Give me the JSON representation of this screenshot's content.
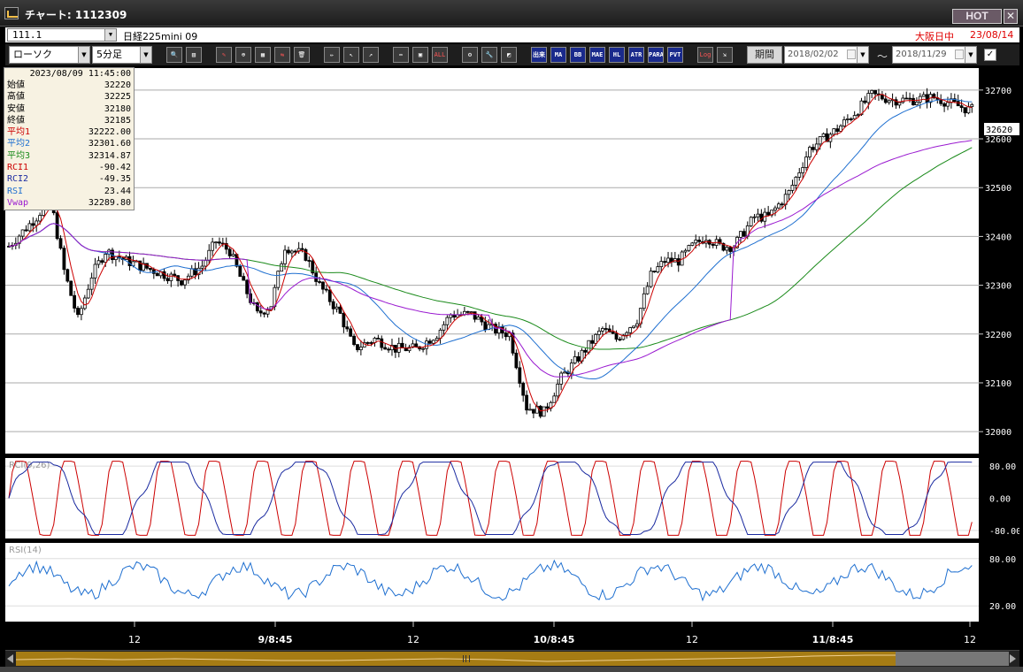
{
  "window": {
    "title": "チャート: 1112309",
    "hot_label": "HOT",
    "close_label": "✕"
  },
  "info_row": {
    "code": "111.1",
    "symbol": "日経225mini 09",
    "exchange": "大阪日中",
    "date": "23/08/14"
  },
  "toolbar": {
    "chart_type": "ローソク",
    "interval": "5分足",
    "period_label": "期間",
    "date_from": "2018/02/02",
    "date_to": "2018/11/29",
    "tilde": "〜",
    "check": "✓",
    "buttons": [
      "search",
      "layout",
      "draw-1",
      "zoom",
      "flip",
      "clear",
      "pen",
      "pointer",
      "arrow",
      "bars",
      "box",
      "ALL",
      "gear",
      "wrench",
      "palette",
      "出来",
      "MA",
      "BB",
      "MAE",
      "HL",
      "ATR",
      "PARA",
      "PVT",
      "Log",
      "export"
    ]
  },
  "info_panel": {
    "datetime": "2023/08/09  11:45:00",
    "rows": [
      {
        "label": "始値",
        "value": "32220",
        "color": "#000000"
      },
      {
        "label": "高値",
        "value": "32225",
        "color": "#000000"
      },
      {
        "label": "安値",
        "value": "32180",
        "color": "#000000"
      },
      {
        "label": "終値",
        "value": "32185",
        "color": "#000000"
      },
      {
        "label": "平均1",
        "value": "32222.00",
        "color": "#cc0000"
      },
      {
        "label": "平均2",
        "value": "32301.60",
        "color": "#1e6fd0"
      },
      {
        "label": "平均3",
        "value": "32314.87",
        "color": "#1a8a1a"
      },
      {
        "label": "RCI1",
        "value": "-90.42",
        "color": "#cc0000"
      },
      {
        "label": "RCI2",
        "value": "-49.35",
        "color": "#1a2aa0"
      },
      {
        "label": "RSI",
        "value": "23.44",
        "color": "#1e6fd0"
      },
      {
        "label": "Vwap",
        "value": "32289.80",
        "color": "#9a1ad0"
      }
    ]
  },
  "chart_data": {
    "type": "candlestick",
    "price_axis": {
      "min": 32000,
      "max": 32700,
      "ticks": [
        32000,
        32100,
        32200,
        32300,
        32400,
        32500,
        32600,
        32700
      ],
      "current_price": "32620"
    },
    "x_ticks": [
      "12",
      "9/8:45",
      "12",
      "10/8:45",
      "12",
      "11/8:45",
      "12"
    ],
    "keypoints": [
      [
        0,
        32380
      ],
      [
        8,
        32440
      ],
      [
        12,
        32480
      ],
      [
        16,
        32330
      ],
      [
        20,
        32230
      ],
      [
        24,
        32320
      ],
      [
        28,
        32370
      ],
      [
        34,
        32350
      ],
      [
        42,
        32330
      ],
      [
        50,
        32310
      ],
      [
        56,
        32340
      ],
      [
        60,
        32390
      ],
      [
        64,
        32370
      ],
      [
        68,
        32300
      ],
      [
        72,
        32240
      ],
      [
        76,
        32260
      ],
      [
        80,
        32380
      ],
      [
        86,
        32360
      ],
      [
        90,
        32300
      ],
      [
        96,
        32240
      ],
      [
        100,
        32170
      ],
      [
        106,
        32190
      ],
      [
        112,
        32170
      ],
      [
        118,
        32170
      ],
      [
        124,
        32200
      ],
      [
        128,
        32240
      ],
      [
        134,
        32240
      ],
      [
        140,
        32210
      ],
      [
        145,
        32200
      ],
      [
        150,
        32050
      ],
      [
        155,
        32040
      ],
      [
        160,
        32110
      ],
      [
        166,
        32160
      ],
      [
        172,
        32210
      ],
      [
        176,
        32190
      ],
      [
        182,
        32230
      ],
      [
        186,
        32320
      ],
      [
        190,
        32350
      ],
      [
        194,
        32350
      ],
      [
        198,
        32380
      ],
      [
        202,
        32400
      ],
      [
        206,
        32380
      ],
      [
        210,
        32380
      ],
      [
        216,
        32440
      ],
      [
        220,
        32440
      ],
      [
        226,
        32490
      ],
      [
        232,
        32580
      ],
      [
        236,
        32600
      ],
      [
        240,
        32620
      ],
      [
        246,
        32660
      ],
      [
        250,
        32690
      ],
      [
        256,
        32680
      ],
      [
        262,
        32680
      ],
      [
        268,
        32685
      ],
      [
        274,
        32670
      ],
      [
        278,
        32660
      ]
    ],
    "series": [
      {
        "name": "平均1",
        "color": "#cc0000",
        "period": 5
      },
      {
        "name": "平均2",
        "color": "#1e6fd0",
        "period": 25
      },
      {
        "name": "平均3",
        "color": "#1a8a1a",
        "period": 75
      },
      {
        "name": "Vwap",
        "color": "#9a1ad0"
      }
    ],
    "rci": {
      "label": "RCI(9,26)",
      "ticks": [
        "80.00",
        "0.00",
        "-80.00"
      ],
      "range": [
        -100,
        100
      ]
    },
    "rsi": {
      "label": "RSI(14)",
      "ticks": [
        "80.00",
        "20.00"
      ],
      "range": [
        0,
        100
      ]
    },
    "candle_count": 280,
    "colors": {
      "up": "#ffffff",
      "down": "#000000",
      "wick": "#000000",
      "chart_bg": "#ffffff",
      "axis_bg": "#000000",
      "axis_text": "#ffffff"
    }
  }
}
